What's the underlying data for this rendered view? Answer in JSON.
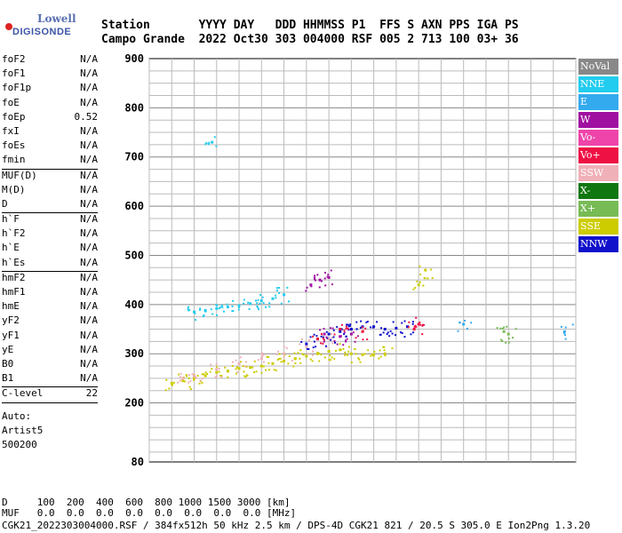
{
  "logo": {
    "brand": "Lowell",
    "name": "DIGISONDE"
  },
  "header": {
    "labels_line": "Station       YYYY DAY   DDD HHMMSS P1  FFS S AXN PPS IGA PS",
    "values_line": "Campo Grande  2022 Oct30 303 004000 RSF 005 2 713 100 03+ 36"
  },
  "params": {
    "group1": [
      {
        "name": "foF2",
        "value": "N/A"
      },
      {
        "name": "foF1",
        "value": "N/A"
      },
      {
        "name": "foF1p",
        "value": "N/A"
      },
      {
        "name": "foE",
        "value": "N/A"
      },
      {
        "name": "foEp",
        "value": "0.52"
      },
      {
        "name": "fxI",
        "value": "N/A"
      },
      {
        "name": "foEs",
        "value": "N/A"
      },
      {
        "name": "fmin",
        "value": "N/A"
      }
    ],
    "group2": [
      {
        "name": "MUF(D)",
        "value": "N/A"
      },
      {
        "name": "M(D)",
        "value": "N/A"
      },
      {
        "name": "D",
        "value": "N/A"
      }
    ],
    "group3": [
      {
        "name": "h`F",
        "value": "N/A"
      },
      {
        "name": "h`F2",
        "value": "N/A"
      },
      {
        "name": "h`E",
        "value": "N/A"
      },
      {
        "name": "h`Es",
        "value": "N/A"
      }
    ],
    "group4": [
      {
        "name": "hmF2",
        "value": "N/A"
      },
      {
        "name": "hmF1",
        "value": "N/A"
      },
      {
        "name": "hmE",
        "value": "N/A"
      },
      {
        "name": "yF2",
        "value": "N/A"
      },
      {
        "name": "yF1",
        "value": "N/A"
      },
      {
        "name": "yE",
        "value": "N/A"
      },
      {
        "name": "B0",
        "value": "N/A"
      },
      {
        "name": "B1",
        "value": "N/A"
      }
    ],
    "group5": [
      {
        "name": "C-level",
        "value": "22"
      }
    ],
    "auto": [
      "Auto:",
      "Artist5",
      "500200"
    ]
  },
  "legend": [
    {
      "label": "NoVal",
      "color": "#888888"
    },
    {
      "label": "NNE",
      "color": "#22ccee"
    },
    {
      "label": "E",
      "color": "#33aaee"
    },
    {
      "label": "W",
      "color": "#a010a0"
    },
    {
      "label": "Vo-",
      "color": "#ee44aa"
    },
    {
      "label": "Vo+",
      "color": "#ee1144"
    },
    {
      "label": "SSW",
      "color": "#f0b0b8"
    },
    {
      "label": "X-",
      "color": "#117711"
    },
    {
      "label": "X+",
      "color": "#77bb55"
    },
    {
      "label": "SSE",
      "color": "#cccc00"
    },
    {
      "label": "NNW",
      "color": "#1111cc"
    }
  ],
  "footer": {
    "d_line": "D     100  200  400  600  800 1000 1500 3000 [km]",
    "muf_line": "MUF   0.0  0.0  0.0  0.0  0.0  0.0  0.0  0.0 [MHz]",
    "info_line": "CGK21_2022303004000.RSF / 384fx512h 50 kHz 2.5 km / DPS-4D CGK21 821 / 20.5 S 305.0 E Ion2Png 1.3.20"
  },
  "chart_data": {
    "type": "scatter",
    "title": "",
    "xlabel": "",
    "ylabel": "",
    "xlim": [
      1,
      20
    ],
    "ylim": [
      80,
      900
    ],
    "x_ticks": [
      1,
      2,
      3,
      4,
      5,
      6,
      7,
      8,
      9,
      10,
      11,
      12,
      13,
      14,
      15,
      16,
      17,
      18,
      19,
      20
    ],
    "y_ticks": [
      80,
      200,
      300,
      400,
      500,
      600,
      700,
      800,
      900
    ],
    "grid": true,
    "series": [
      {
        "name": "SSE",
        "color": "#cccc00",
        "points": [
          [
            2.0,
            240
          ],
          [
            2.5,
            245
          ],
          [
            3.0,
            250
          ],
          [
            3.5,
            255
          ],
          [
            4.0,
            262
          ],
          [
            4.5,
            265
          ],
          [
            5.0,
            270
          ],
          [
            5.5,
            272
          ],
          [
            6.0,
            275
          ],
          [
            6.5,
            280
          ],
          [
            7.0,
            285
          ],
          [
            7.5,
            290
          ],
          [
            8.0,
            295
          ],
          [
            8.5,
            300
          ],
          [
            9.0,
            305
          ],
          [
            9.5,
            308
          ],
          [
            10.0,
            300
          ],
          [
            10.5,
            298
          ],
          [
            11.0,
            298
          ],
          [
            11.5,
            300
          ],
          [
            13.0,
            440
          ],
          [
            13.3,
            470
          ]
        ]
      },
      {
        "name": "SSW",
        "color": "#f0b0b8",
        "points": [
          [
            2.5,
            250
          ],
          [
            3.0,
            255
          ],
          [
            4.0,
            268
          ],
          [
            5.0,
            280
          ],
          [
            6.0,
            290
          ],
          [
            7.0,
            300
          ],
          [
            8.0,
            315
          ],
          [
            9.0,
            330
          ]
        ]
      },
      {
        "name": "NNE",
        "color": "#22ccee",
        "points": [
          [
            3.0,
            385
          ],
          [
            3.5,
            388
          ],
          [
            4.0,
            392
          ],
          [
            4.5,
            395
          ],
          [
            5.0,
            398
          ],
          [
            5.5,
            402
          ],
          [
            6.0,
            408
          ],
          [
            6.5,
            412
          ],
          [
            7.0,
            420
          ],
          [
            3.8,
            730
          ]
        ]
      },
      {
        "name": "NNW",
        "color": "#1111cc",
        "points": [
          [
            8.0,
            320
          ],
          [
            8.5,
            330
          ],
          [
            9.0,
            340
          ],
          [
            9.5,
            345
          ],
          [
            10.0,
            350
          ],
          [
            10.5,
            355
          ],
          [
            11.0,
            355
          ],
          [
            11.5,
            350
          ],
          [
            12.0,
            352
          ],
          [
            12.5,
            355
          ]
        ]
      },
      {
        "name": "W",
        "color": "#a010a0",
        "points": [
          [
            8.2,
            440
          ],
          [
            8.6,
            450
          ],
          [
            9.0,
            455
          ],
          [
            8.8,
            340
          ],
          [
            9.5,
            335
          ],
          [
            10.0,
            340
          ]
        ]
      },
      {
        "name": "Vo+",
        "color": "#ee1144",
        "points": [
          [
            8.5,
            330
          ],
          [
            9.5,
            350
          ],
          [
            10.5,
            345
          ],
          [
            12.8,
            350
          ],
          [
            13.0,
            360
          ]
        ]
      },
      {
        "name": "X+",
        "color": "#77bb55",
        "points": [
          [
            16.8,
            345
          ],
          [
            17.0,
            340
          ]
        ]
      },
      {
        "name": "E",
        "color": "#33aaee",
        "points": [
          [
            15.0,
            360
          ],
          [
            19.5,
            345
          ]
        ]
      }
    ]
  }
}
